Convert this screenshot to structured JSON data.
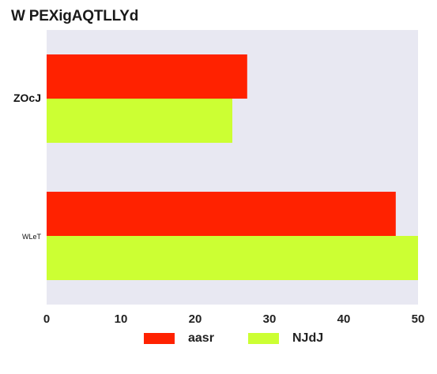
{
  "chart_data": {
    "type": "bar",
    "orientation": "horizontal",
    "title": "W PEXigAQTLLYd",
    "xlabel": "",
    "ylabel": "",
    "categories": [
      "ZOcJ",
      "WLeT"
    ],
    "series": [
      {
        "name": "aasr",
        "values": [
          27,
          47
        ],
        "color": "#ff2200"
      },
      {
        "name": "NJdJ",
        "values": [
          25,
          50
        ],
        "color": "#ccff33"
      }
    ],
    "xlim": [
      0,
      50
    ],
    "xticks": [
      "0",
      "10",
      "20",
      "30",
      "40",
      "50"
    ],
    "grid": false,
    "background": "#e8e8f2",
    "legend_position": "bottom-center"
  }
}
